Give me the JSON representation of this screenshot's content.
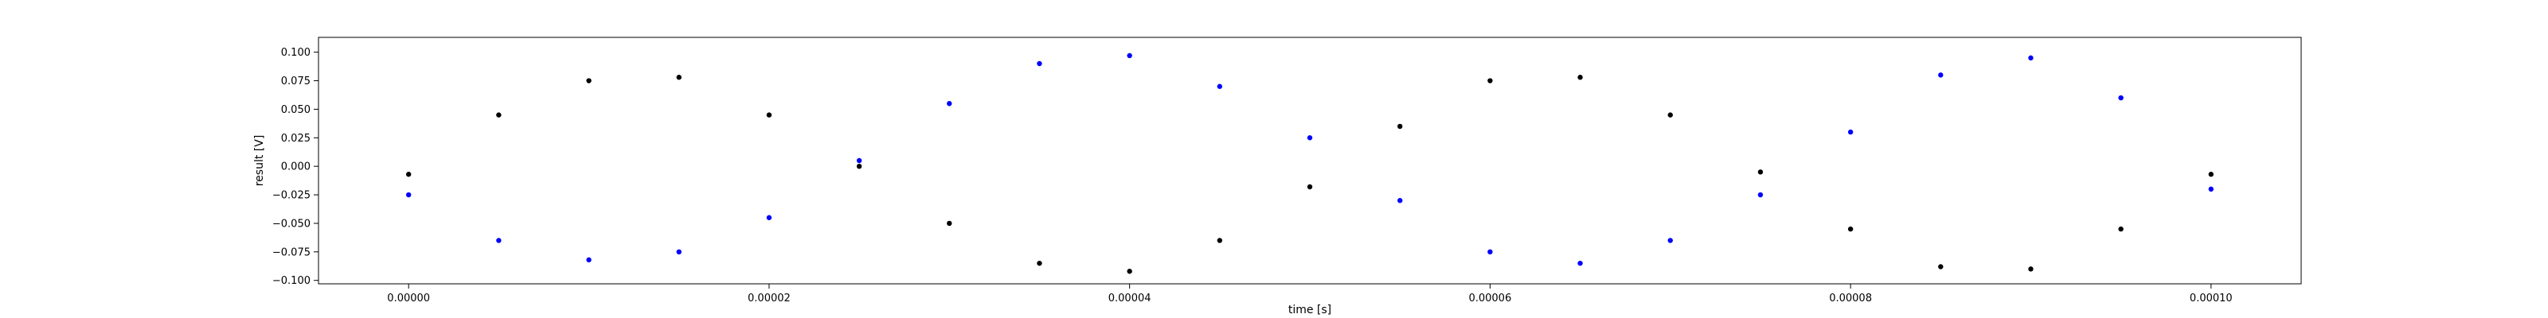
{
  "chart_data": {
    "type": "scatter",
    "xlabel": "time [s]",
    "ylabel": "result [V]",
    "xlim": [
      -5e-06,
      0.000105
    ],
    "ylim": [
      -0.103,
      0.113
    ],
    "grid": false,
    "x_ticks": [
      {
        "value": 0.0,
        "label": "0.00000"
      },
      {
        "value": 2e-05,
        "label": "0.00002"
      },
      {
        "value": 4e-05,
        "label": "0.00004"
      },
      {
        "value": 6e-05,
        "label": "0.00006"
      },
      {
        "value": 8e-05,
        "label": "0.00008"
      },
      {
        "value": 0.0001,
        "label": "0.00010"
      }
    ],
    "y_ticks": [
      {
        "value": 0.1,
        "label": "0.100"
      },
      {
        "value": 0.075,
        "label": "0.075"
      },
      {
        "value": 0.05,
        "label": "0.050"
      },
      {
        "value": 0.025,
        "label": "0.025"
      },
      {
        "value": 0.0,
        "label": "0.000"
      },
      {
        "value": -0.025,
        "label": "−0.025"
      },
      {
        "value": -0.05,
        "label": "−0.050"
      },
      {
        "value": -0.075,
        "label": "−0.075"
      },
      {
        "value": -0.1,
        "label": "−0.100"
      }
    ],
    "series": [
      {
        "color": "#0000ff",
        "x": [
          0,
          5e-06,
          1e-05,
          1.5e-05,
          2e-05,
          2.5e-05,
          3e-05,
          3.5e-05,
          4e-05,
          4.5e-05,
          5e-05,
          5.5e-05,
          6e-05,
          6.5e-05,
          7e-05,
          7.5e-05,
          8e-05,
          8.5e-05,
          9e-05,
          9.5e-05,
          0.0001
        ],
        "y": [
          -0.025,
          -0.065,
          -0.082,
          -0.075,
          -0.045,
          0.005,
          0.055,
          0.09,
          0.097,
          0.07,
          0.025,
          -0.03,
          -0.075,
          -0.085,
          -0.065,
          -0.025,
          0.03,
          0.08,
          0.095,
          0.06,
          -0.02
        ]
      },
      {
        "color": "#000000",
        "x": [
          0,
          5e-06,
          1e-05,
          1.5e-05,
          2e-05,
          2.5e-05,
          3e-05,
          3.5e-05,
          4e-05,
          4.5e-05,
          5e-05,
          5.5e-05,
          6e-05,
          6.5e-05,
          7e-05,
          7.5e-05,
          8e-05,
          8.5e-05,
          9e-05,
          9.5e-05,
          0.0001
        ],
        "y": [
          -0.007,
          0.045,
          0.075,
          0.078,
          0.045,
          0.0,
          -0.05,
          -0.085,
          -0.092,
          -0.065,
          -0.018,
          0.035,
          0.075,
          0.078,
          0.045,
          -0.005,
          -0.055,
          -0.088,
          -0.09,
          -0.055,
          -0.007
        ]
      }
    ]
  }
}
